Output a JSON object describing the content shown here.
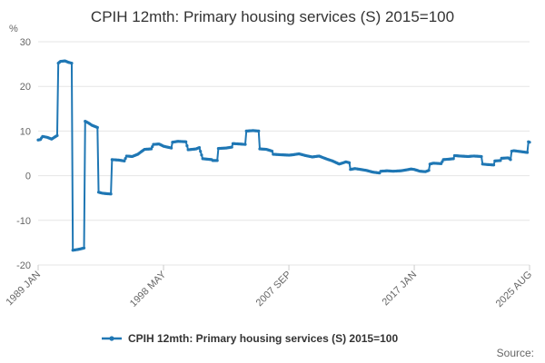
{
  "chart_data": {
    "type": "line",
    "title": "CPIH 12mth: Primary housing services (S) 2015=100",
    "unit_label": "%",
    "ylim": [
      -20,
      30
    ],
    "yticks": [
      30,
      20,
      10,
      0,
      -10,
      -20
    ],
    "x_start": "1989 JAN",
    "x_end": "2025 AUG",
    "xticks": [
      "1989 JAN",
      "1998 MAY",
      "2007 SEP",
      "2017 JAN",
      "2025 AUG"
    ],
    "grid": "horizontal",
    "legend_position": "bottom",
    "source_label": "Source:",
    "series": [
      {
        "name": "CPIH 12mth: Primary housing services (S) 2015=100",
        "color": "#1f77b4",
        "points": [
          [
            "1989 JAN",
            8.0
          ],
          [
            "1989 MAR",
            8.1
          ],
          [
            "1989 MAY",
            8.8
          ],
          [
            "1989 SEP",
            8.6
          ],
          [
            "1990 JAN",
            8.2
          ],
          [
            "1990 JUN",
            9.0
          ],
          [
            "1990 JUL",
            25.2
          ],
          [
            "1990 SEP",
            25.6
          ],
          [
            "1991 JAN",
            25.7
          ],
          [
            "1991 APR",
            25.4
          ],
          [
            "1991 JUL",
            25.2
          ],
          [
            "1991 AUG",
            -16.7
          ],
          [
            "1992 JAN",
            -16.5
          ],
          [
            "1992 JUN",
            -16.2
          ],
          [
            "1992 JUL",
            12.2
          ],
          [
            "1992 OCT",
            11.8
          ],
          [
            "1993 JAN",
            11.3
          ],
          [
            "1993 JUN",
            10.8
          ],
          [
            "1993 JUL",
            -3.7
          ],
          [
            "1993 OCT",
            -3.9
          ],
          [
            "1994 JAN",
            -4.0
          ],
          [
            "1994 JUN",
            -4.1
          ],
          [
            "1994 JUL",
            3.6
          ],
          [
            "1995 JAN",
            3.5
          ],
          [
            "1995 JUN",
            3.3
          ],
          [
            "1995 AUG",
            4.4
          ],
          [
            "1996 JAN",
            4.3
          ],
          [
            "1996 JUN",
            4.8
          ],
          [
            "1996 DEC",
            5.9
          ],
          [
            "1997 JUN",
            6.0
          ],
          [
            "1997 AUG",
            7.0
          ],
          [
            "1998 JAN",
            7.1
          ],
          [
            "1998 MAY",
            6.6
          ],
          [
            "1998 DEC",
            6.2
          ],
          [
            "1999 JAN",
            7.5
          ],
          [
            "1999 JUN",
            7.7
          ],
          [
            "2000 JAN",
            7.6
          ],
          [
            "2000 MAR",
            5.8
          ],
          [
            "2000 OCT",
            6.0
          ],
          [
            "2001 JAN",
            6.3
          ],
          [
            "2001 APR",
            3.8
          ],
          [
            "2001 DEC",
            3.6
          ],
          [
            "2002 JAN",
            3.4
          ],
          [
            "2002 MAY",
            3.4
          ],
          [
            "2002 JUN",
            6.1
          ],
          [
            "2003 JAN",
            6.2
          ],
          [
            "2003 JUN",
            6.4
          ],
          [
            "2003 JUL",
            7.2
          ],
          [
            "2004 JAN",
            7.1
          ],
          [
            "2004 JUN",
            7.0
          ],
          [
            "2004 JUL",
            10.0
          ],
          [
            "2005 JAN",
            10.1
          ],
          [
            "2005 JUN",
            10.0
          ],
          [
            "2005 JUL",
            6.0
          ],
          [
            "2006 JAN",
            5.9
          ],
          [
            "2006 JUN",
            5.5
          ],
          [
            "2006 JUL",
            4.8
          ],
          [
            "2007 JAN",
            4.7
          ],
          [
            "2007 SEP",
            4.6
          ],
          [
            "2008 JAN",
            4.7
          ],
          [
            "2008 JUN",
            4.9
          ],
          [
            "2008 DEC",
            4.5
          ],
          [
            "2009 JUN",
            4.2
          ],
          [
            "2009 DEC",
            4.4
          ],
          [
            "2010 JUN",
            3.8
          ],
          [
            "2010 DEC",
            3.3
          ],
          [
            "2011 JUN",
            2.6
          ],
          [
            "2011 DEC",
            3.1
          ],
          [
            "2012 MAR",
            2.9
          ],
          [
            "2012 APR",
            1.4
          ],
          [
            "2012 AUG",
            1.6
          ],
          [
            "2013 JAN",
            1.4
          ],
          [
            "2013 JUN",
            1.2
          ],
          [
            "2013 DEC",
            0.8
          ],
          [
            "2014 JUN",
            0.6
          ],
          [
            "2014 JUL",
            1.0
          ],
          [
            "2015 JAN",
            1.1
          ],
          [
            "2015 JUN",
            1.0
          ],
          [
            "2016 JAN",
            1.1
          ],
          [
            "2016 JUN",
            1.3
          ],
          [
            "2016 OCT",
            1.5
          ],
          [
            "2017 JAN",
            1.4
          ],
          [
            "2017 JUN",
            1.0
          ],
          [
            "2017 NOV",
            0.9
          ],
          [
            "2018 FEB",
            1.2
          ],
          [
            "2018 MAR",
            2.6
          ],
          [
            "2018 JUN",
            2.8
          ],
          [
            "2019 JAN",
            2.7
          ],
          [
            "2019 MAR",
            3.6
          ],
          [
            "2019 DEC",
            3.8
          ],
          [
            "2020 JAN",
            4.5
          ],
          [
            "2020 JUN",
            4.4
          ],
          [
            "2021 JAN",
            4.3
          ],
          [
            "2021 JUN",
            4.4
          ],
          [
            "2022 JAN",
            4.3
          ],
          [
            "2022 FEB",
            2.6
          ],
          [
            "2022 JUN",
            2.5
          ],
          [
            "2022 DEC",
            2.4
          ],
          [
            "2023 JAN",
            3.3
          ],
          [
            "2023 JUN",
            3.4
          ],
          [
            "2023 JUL",
            3.9
          ],
          [
            "2024 JAN",
            4.0
          ],
          [
            "2024 MAR",
            3.6
          ],
          [
            "2024 APR",
            5.5
          ],
          [
            "2024 JUN",
            5.6
          ],
          [
            "2024 DEC",
            5.4
          ],
          [
            "2025 MAR",
            5.3
          ],
          [
            "2025 JUN",
            5.2
          ],
          [
            "2025 JUL",
            7.6
          ],
          [
            "2025 AUG",
            7.5
          ]
        ]
      }
    ]
  }
}
